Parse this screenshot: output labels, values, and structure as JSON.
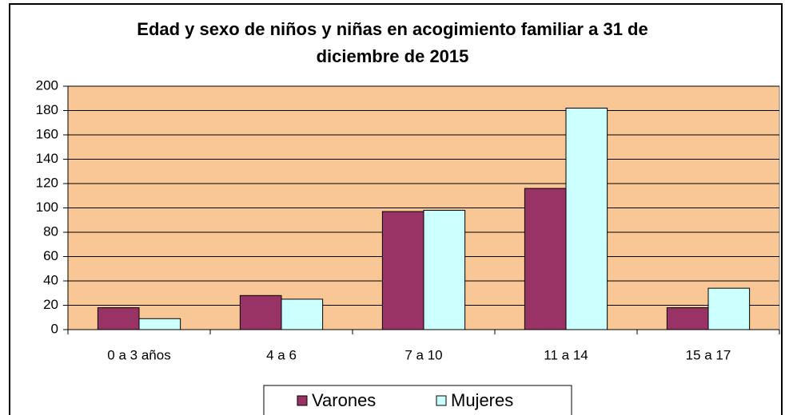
{
  "chart_data": {
    "type": "bar",
    "title": "Edad y sexo de niños y niñas en acogimiento familiar a 31 de diciembre de 2015",
    "categories": [
      "0 a 3 años",
      "4 a 6",
      "7 a 10",
      "11 a 14",
      "15 a 17"
    ],
    "series": [
      {
        "name": "Varones",
        "color": "#993366",
        "values": [
          18,
          28,
          97,
          116,
          18
        ]
      },
      {
        "name": "Mujeres",
        "color": "#CCFFFF",
        "values": [
          9,
          25,
          98,
          182,
          34
        ]
      }
    ],
    "ylim": [
      0,
      200
    ],
    "yticks": [
      0,
      20,
      40,
      60,
      80,
      100,
      120,
      140,
      160,
      180,
      200
    ],
    "grid": true,
    "plot_color": "#F9C796",
    "legend": "bottom"
  }
}
